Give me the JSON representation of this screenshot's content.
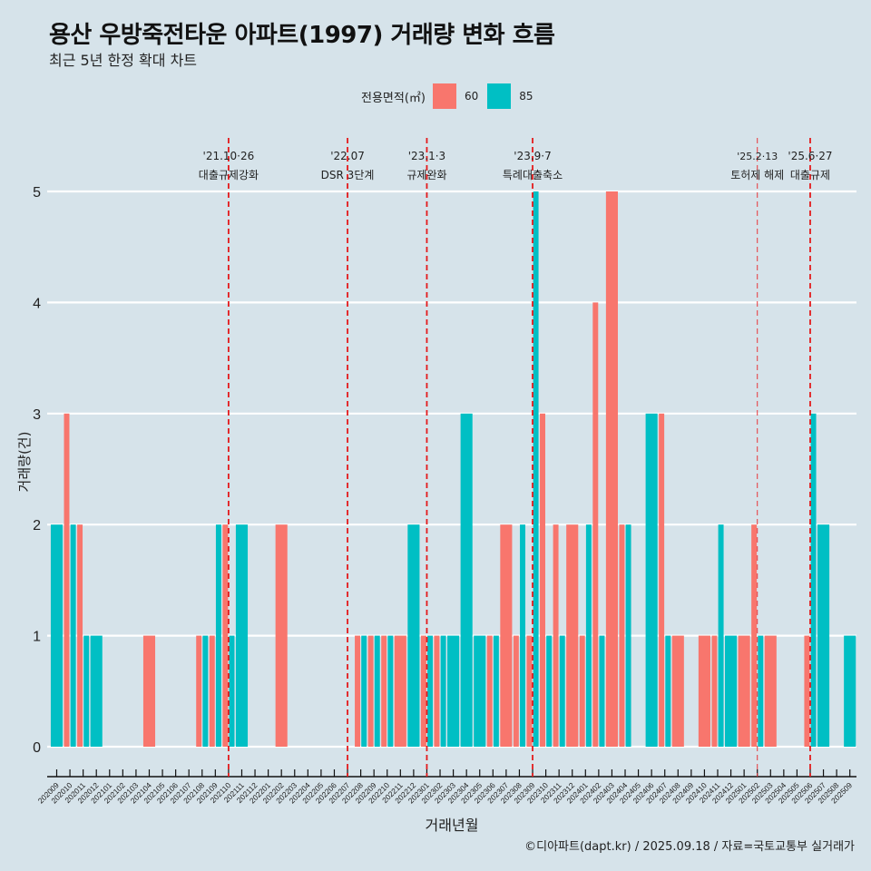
{
  "header": {
    "title": "용산 우방죽전타운 아파트(1997) 거래량 변화 흐름",
    "subtitle": "최근 5년 한정 확대 차트"
  },
  "legend": {
    "title": "전용면적(㎡)",
    "items": [
      {
        "label": "60",
        "color": "#f8766d"
      },
      {
        "label": "85",
        "color": "#00bfc4"
      }
    ]
  },
  "footer": "©디아파트(dapt.kr) / 2025.09.18 / 자료=국토교통부 실거래가",
  "chart_data": {
    "type": "bar",
    "title": "용산 우방죽전타운 아파트(1997) 거래량 변화 흐름",
    "subtitle": "최근 5년 한정 확대 차트",
    "xlabel": "거래년월",
    "ylabel": "거래량(건)",
    "ylim": [
      0,
      5
    ],
    "yticks": [
      0,
      1,
      2,
      3,
      4,
      5
    ],
    "grid": true,
    "legend_position": "top",
    "categories": [
      "202009",
      "202010",
      "202011",
      "202012",
      "202101",
      "202102",
      "202103",
      "202104",
      "202105",
      "202106",
      "202107",
      "202108",
      "202109",
      "202110",
      "202111",
      "202112",
      "202201",
      "202202",
      "202203",
      "202204",
      "202205",
      "202206",
      "202207",
      "202208",
      "202209",
      "202210",
      "202211",
      "202212",
      "202301",
      "202302",
      "202303",
      "202304",
      "202305",
      "202306",
      "202307",
      "202308",
      "202309",
      "202310",
      "202311",
      "202312",
      "202401",
      "202402",
      "202403",
      "202404",
      "202405",
      "202406",
      "202407",
      "202408",
      "202409",
      "202410",
      "202411",
      "202412",
      "202501",
      "202502",
      "202503",
      "202504",
      "202505",
      "202506",
      "202507",
      "202508",
      "202509"
    ],
    "series": [
      {
        "name": "60",
        "color": "#f8766d",
        "values": [
          0,
          3,
          2,
          0,
          0,
          0,
          0,
          1,
          0,
          0,
          0,
          1,
          1,
          2,
          0,
          0,
          0,
          2,
          0,
          0,
          0,
          0,
          0,
          1,
          1,
          1,
          1,
          0,
          1,
          1,
          0,
          0,
          0,
          1,
          2,
          1,
          1,
          3,
          2,
          2,
          1,
          4,
          5,
          2,
          0,
          0,
          3,
          1,
          0,
          1,
          1,
          0,
          1,
          2,
          1,
          0,
          0,
          1,
          0,
          0,
          0
        ]
      },
      {
        "name": "85",
        "color": "#00bfc4",
        "values": [
          2,
          2,
          1,
          1,
          0,
          0,
          0,
          0,
          0,
          0,
          0,
          1,
          2,
          1,
          2,
          0,
          0,
          0,
          0,
          0,
          0,
          0,
          0,
          1,
          1,
          1,
          0,
          2,
          1,
          1,
          1,
          3,
          1,
          1,
          0,
          2,
          5,
          1,
          1,
          0,
          2,
          1,
          0,
          2,
          0,
          3,
          1,
          0,
          0,
          0,
          2,
          1,
          0,
          1,
          0,
          0,
          0,
          3,
          2,
          0,
          1
        ]
      }
    ],
    "annotations": [
      {
        "month": "202110",
        "date": "'21.10·26",
        "label": "대출규제강화",
        "style": "bold"
      },
      {
        "month": "202207",
        "date": "'22.07",
        "label": "DSR 3단계",
        "style": "bold"
      },
      {
        "month": "202301",
        "date": "'23.1·3",
        "label": "규제완화",
        "style": "bold"
      },
      {
        "month": "202309",
        "date": "'23.9·7",
        "label": "특례대출축소",
        "style": "bold"
      },
      {
        "month": "202502",
        "date": "'25.2·13",
        "label": "토허제 해제",
        "style": "thin"
      },
      {
        "month": "202506",
        "date": "'25.6·27",
        "label": "대출규제",
        "style": "bold"
      }
    ]
  }
}
